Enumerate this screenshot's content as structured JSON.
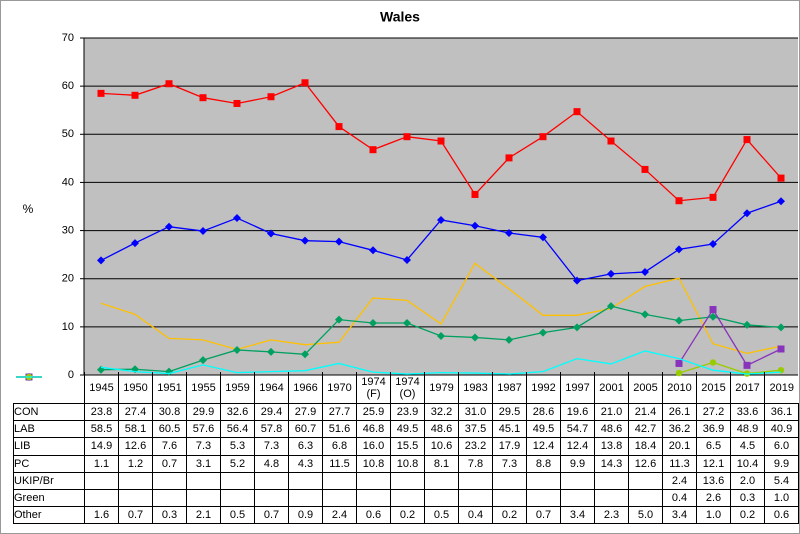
{
  "chart_data": {
    "type": "line",
    "title": "Wales",
    "y_label": "%",
    "categories": [
      "1945",
      "1950",
      "1951",
      "1955",
      "1959",
      "1964",
      "1966",
      "1970",
      "1974 (F)",
      "1974 (O)",
      "1979",
      "1983",
      "1987",
      "1992",
      "1997",
      "2001",
      "2005",
      "2010",
      "2015",
      "2017",
      "2019"
    ],
    "ylim": [
      0,
      70
    ],
    "yticks": [
      0,
      10,
      20,
      30,
      40,
      50,
      60,
      70
    ],
    "grid": true,
    "data_table": true,
    "series": [
      {
        "name": "CON",
        "color": "#0000ff",
        "marker": "diamond",
        "values": [
          23.8,
          27.4,
          30.8,
          29.9,
          32.6,
          29.4,
          27.9,
          27.7,
          25.9,
          23.9,
          32.2,
          31.0,
          29.5,
          28.6,
          19.6,
          21.0,
          21.4,
          26.1,
          27.2,
          33.6,
          36.1
        ],
        "value_labels": [
          "23.8",
          "27.4",
          "30.8",
          "29.9",
          "32.6",
          "29.4",
          "27.9",
          "27.7",
          "25.9",
          "23.9",
          "32.2",
          "31.0",
          "29.5",
          "28.6",
          "19.6",
          "21.0",
          "21.4",
          "26.1",
          "27.2",
          "33.6",
          "36.1"
        ]
      },
      {
        "name": "LAB",
        "color": "#ff0000",
        "marker": "square",
        "values": [
          58.5,
          58.1,
          60.5,
          57.6,
          56.4,
          57.8,
          60.7,
          51.6,
          46.8,
          49.5,
          48.6,
          37.5,
          45.1,
          49.5,
          54.7,
          48.6,
          42.7,
          36.2,
          36.9,
          48.9,
          40.9
        ],
        "value_labels": [
          "58.5",
          "58.1",
          "60.5",
          "57.6",
          "56.4",
          "57.8",
          "60.7",
          "51.6",
          "46.8",
          "49.5",
          "48.6",
          "37.5",
          "45.1",
          "49.5",
          "54.7",
          "48.6",
          "42.7",
          "36.2",
          "36.9",
          "48.9",
          "40.9"
        ]
      },
      {
        "name": "LIB",
        "color": "#ffc000",
        "marker": "none",
        "values": [
          14.9,
          12.6,
          7.6,
          7.3,
          5.3,
          7.3,
          6.3,
          6.8,
          16.0,
          15.5,
          10.6,
          23.2,
          17.9,
          12.4,
          12.4,
          13.8,
          18.4,
          20.1,
          6.5,
          4.5,
          6.0
        ],
        "value_labels": [
          "14.9",
          "12.6",
          "7.6",
          "7.3",
          "5.3",
          "7.3",
          "6.3",
          "6.8",
          "16.0",
          "15.5",
          "10.6",
          "23.2",
          "17.9",
          "12.4",
          "12.4",
          "13.8",
          "18.4",
          "20.1",
          "6.5",
          "4.5",
          "6.0"
        ]
      },
      {
        "name": "PC",
        "color": "#00a060",
        "marker": "diamond",
        "values": [
          1.1,
          1.2,
          0.7,
          3.1,
          5.2,
          4.8,
          4.3,
          11.5,
          10.8,
          10.8,
          8.1,
          7.8,
          7.3,
          8.8,
          9.9,
          14.3,
          12.6,
          11.3,
          12.1,
          10.4,
          9.9
        ],
        "value_labels": [
          "1.1",
          "1.2",
          "0.7",
          "3.1",
          "5.2",
          "4.8",
          "4.3",
          "11.5",
          "10.8",
          "10.8",
          "8.1",
          "7.8",
          "7.3",
          "8.8",
          "9.9",
          "14.3",
          "12.6",
          "11.3",
          "12.1",
          "10.4",
          "9.9"
        ]
      },
      {
        "name": "UKIP/Br",
        "color": "#8833bb",
        "marker": "square",
        "values": [
          null,
          null,
          null,
          null,
          null,
          null,
          null,
          null,
          null,
          null,
          null,
          null,
          null,
          null,
          null,
          null,
          null,
          2.4,
          13.6,
          2.0,
          5.4
        ],
        "value_labels": [
          null,
          null,
          null,
          null,
          null,
          null,
          null,
          null,
          null,
          null,
          null,
          null,
          null,
          null,
          null,
          null,
          null,
          "2.4",
          "13.6",
          "2.0",
          "5.4"
        ]
      },
      {
        "name": "Green",
        "color": "#99cc00",
        "marker": "circle",
        "values": [
          null,
          null,
          null,
          null,
          null,
          null,
          null,
          null,
          null,
          null,
          null,
          null,
          null,
          null,
          null,
          null,
          null,
          0.4,
          2.6,
          0.3,
          1.0
        ],
        "value_labels": [
          null,
          null,
          null,
          null,
          null,
          null,
          null,
          null,
          null,
          null,
          null,
          null,
          null,
          null,
          null,
          null,
          null,
          "0.4",
          "2.6",
          "0.3",
          "1.0"
        ]
      },
      {
        "name": "Other",
        "color": "#00ffff",
        "marker": "none",
        "values": [
          1.6,
          0.7,
          0.3,
          2.1,
          0.5,
          0.7,
          0.9,
          2.4,
          0.6,
          0.2,
          0.5,
          0.4,
          0.2,
          0.7,
          3.4,
          2.3,
          5.0,
          3.4,
          1.0,
          0.2,
          0.6
        ],
        "value_labels": [
          "1.6",
          "0.7",
          "0.3",
          "2.1",
          "0.5",
          "0.7",
          "0.9",
          "2.4",
          "0.6",
          "0.2",
          "0.5",
          "0.4",
          "0.2",
          "0.7",
          "3.4",
          "2.3",
          "5.0",
          "3.4",
          "1.0",
          "0.2",
          "0.6"
        ]
      }
    ]
  }
}
